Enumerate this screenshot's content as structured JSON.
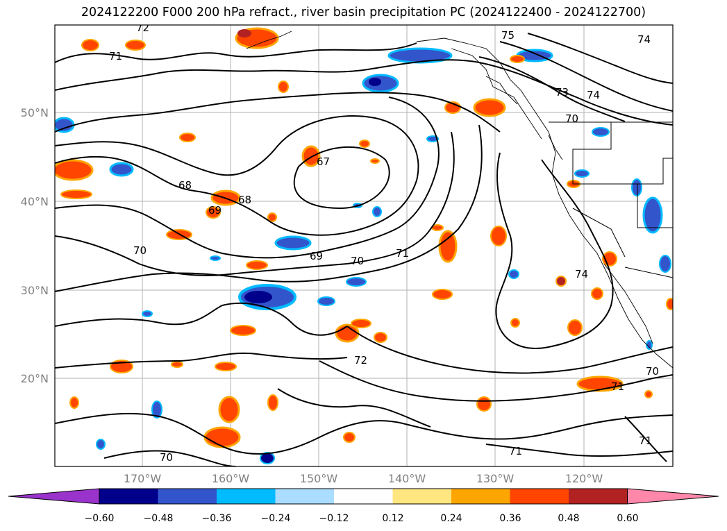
{
  "title": "2024122200 F000 200 hPa refract., river basin precipitation PC (2024122400 - 2024122700)",
  "map": {
    "lat_labels": [
      "50°N",
      "40°N",
      "30°N",
      "20°N"
    ],
    "lon_labels": [
      "170°W",
      "160°W",
      "150°W",
      "140°W",
      "130°W",
      "120°W"
    ],
    "contour_labels": [
      "72",
      "71",
      "75",
      "74",
      "73",
      "74",
      "70",
      "67",
      "68",
      "68",
      "69",
      "70",
      "69",
      "70",
      "71",
      "74",
      "72",
      "70",
      "71",
      "71",
      "70",
      "71"
    ]
  },
  "colorbar": {
    "ticks": [
      "−0.60",
      "−0.48",
      "−0.36",
      "−0.24",
      "−0.12",
      "0.12",
      "0.24",
      "0.36",
      "0.48",
      "0.60"
    ],
    "colors": [
      "#9933cc",
      "#00008b",
      "#3355cc",
      "#00bbff",
      "#aaddff",
      "#ffffff",
      "#ffe680",
      "#ffa500",
      "#ff4500",
      "#b22222",
      "#ff88aa"
    ]
  }
}
